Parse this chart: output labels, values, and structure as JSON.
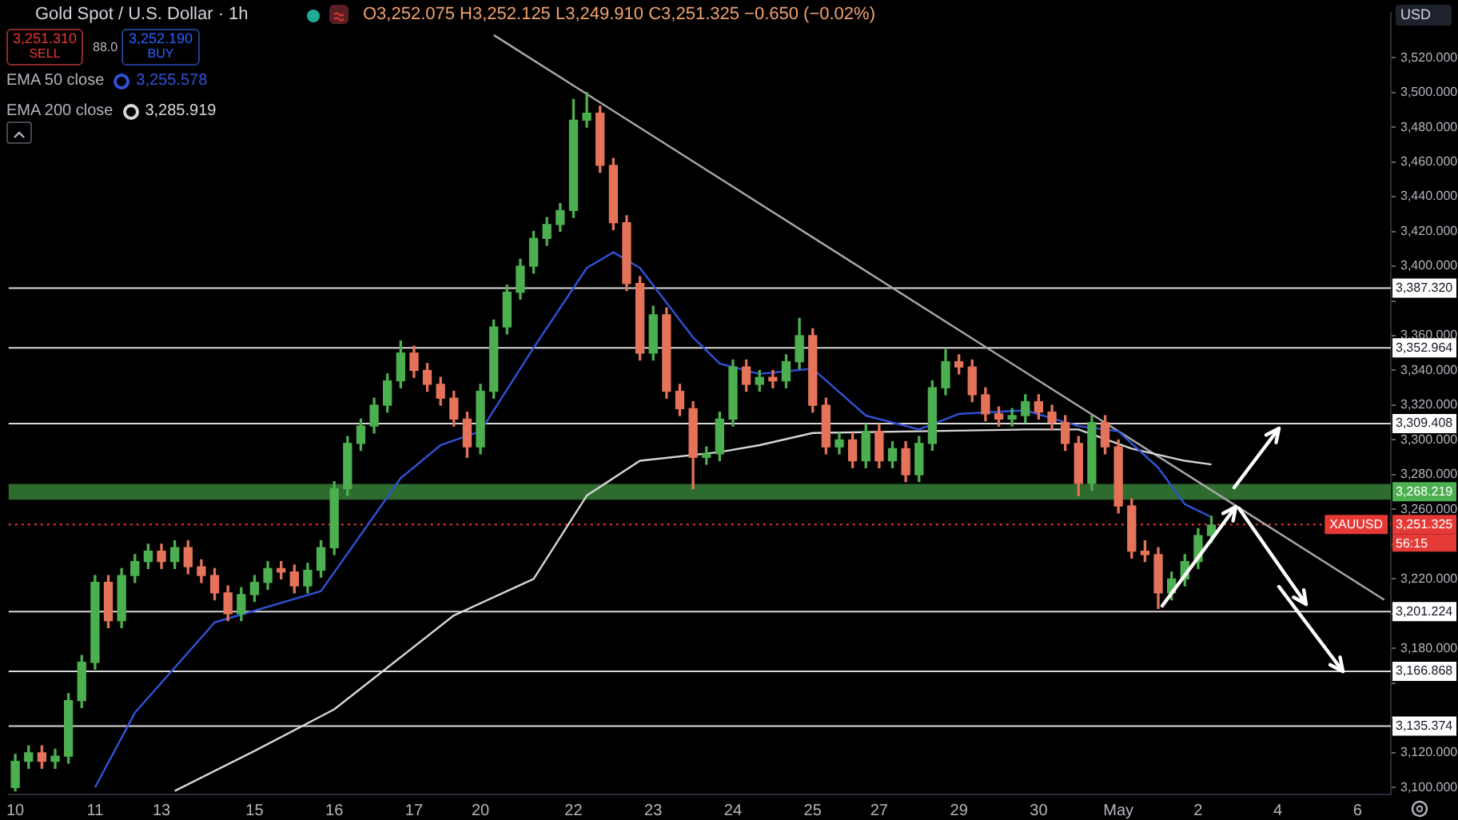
{
  "chart_data": {
    "type": "candlestick",
    "title": "Gold Spot / U.S. Dollar · 1h",
    "categories": [
      "10",
      null,
      null,
      null,
      null,
      null,
      "11",
      null,
      null,
      null,
      null,
      "13",
      null,
      null,
      null,
      null,
      null,
      null,
      "15",
      null,
      null,
      null,
      null,
      null,
      "16",
      null,
      null,
      null,
      null,
      null,
      "17",
      null,
      null,
      null,
      null,
      "20",
      null,
      null,
      null,
      null,
      null,
      null,
      "22",
      null,
      null,
      null,
      null,
      null,
      "23",
      null,
      null,
      null,
      null,
      null,
      "24",
      null,
      null,
      null,
      null,
      null,
      "25",
      null,
      null,
      null,
      null,
      "27",
      null,
      null,
      null,
      null,
      null,
      "29",
      null,
      null,
      null,
      null,
      null,
      "30",
      null,
      null,
      null,
      null,
      null,
      "May",
      null,
      null,
      null,
      null,
      null,
      "2",
      null,
      null,
      null,
      null,
      null,
      "4",
      null,
      null,
      null,
      null,
      null,
      "6",
      null,
      null
    ],
    "ohlc": [
      [
        3100,
        3119,
        3098,
        3115
      ],
      [
        3115,
        3124,
        3111,
        3120
      ],
      [
        3120,
        3124,
        3111,
        3115
      ],
      [
        3115,
        3122,
        3111,
        3118
      ],
      [
        3118,
        3154,
        3114,
        3150
      ],
      [
        3150,
        3176,
        3146,
        3172
      ],
      [
        3172,
        3222,
        3168,
        3218
      ],
      [
        3218,
        3222,
        3192,
        3196
      ],
      [
        3196,
        3226,
        3192,
        3222
      ],
      [
        3222,
        3234,
        3218,
        3230
      ],
      [
        3230,
        3240,
        3226,
        3236
      ],
      [
        3236,
        3240,
        3226,
        3230
      ],
      [
        3230,
        3242,
        3226,
        3238
      ],
      [
        3238,
        3242,
        3223,
        3227
      ],
      [
        3227,
        3231,
        3218,
        3222
      ],
      [
        3222,
        3226,
        3208,
        3212
      ],
      [
        3212,
        3216,
        3196,
        3200
      ],
      [
        3200,
        3215,
        3196,
        3211
      ],
      [
        3211,
        3222,
        3207,
        3218
      ],
      [
        3218,
        3230,
        3214,
        3226
      ],
      [
        3226,
        3230,
        3220,
        3224
      ],
      [
        3224,
        3228,
        3212,
        3216
      ],
      [
        3216,
        3229,
        3212,
        3225
      ],
      [
        3225,
        3242,
        3221,
        3238
      ],
      [
        3238,
        3276,
        3234,
        3272
      ],
      [
        3272,
        3302,
        3268,
        3298
      ],
      [
        3298,
        3312,
        3294,
        3308
      ],
      [
        3308,
        3324,
        3304,
        3320
      ],
      [
        3320,
        3338,
        3316,
        3334
      ],
      [
        3334,
        3357,
        3330,
        3350
      ],
      [
        3350,
        3354,
        3336,
        3340
      ],
      [
        3340,
        3344,
        3328,
        3332
      ],
      [
        3332,
        3336,
        3320,
        3324
      ],
      [
        3324,
        3328,
        3308,
        3312
      ],
      [
        3312,
        3316,
        3290,
        3296
      ],
      [
        3296,
        3332,
        3292,
        3328
      ],
      [
        3328,
        3369,
        3324,
        3365
      ],
      [
        3365,
        3389,
        3361,
        3385
      ],
      [
        3385,
        3404,
        3381,
        3400
      ],
      [
        3400,
        3420,
        3396,
        3416
      ],
      [
        3416,
        3428,
        3412,
        3424
      ],
      [
        3424,
        3436,
        3420,
        3432
      ],
      [
        3432,
        3496,
        3428,
        3484
      ],
      [
        3484,
        3500,
        3480,
        3488
      ],
      [
        3488,
        3492,
        3454,
        3458
      ],
      [
        3458,
        3462,
        3421,
        3425
      ],
      [
        3425,
        3429,
        3386,
        3390
      ],
      [
        3390,
        3394,
        3346,
        3350
      ],
      [
        3350,
        3377,
        3346,
        3372
      ],
      [
        3372,
        3376,
        3324,
        3328
      ],
      [
        3328,
        3332,
        3314,
        3318
      ],
      [
        3318,
        3322,
        3272,
        3290
      ],
      [
        3290,
        3296,
        3286,
        3292
      ],
      [
        3292,
        3316,
        3288,
        3312
      ],
      [
        3312,
        3346,
        3308,
        3342
      ],
      [
        3342,
        3346,
        3328,
        3332
      ],
      [
        3332,
        3340,
        3328,
        3336
      ],
      [
        3336,
        3340,
        3330,
        3334
      ],
      [
        3334,
        3349,
        3330,
        3345
      ],
      [
        3345,
        3370,
        3341,
        3360
      ],
      [
        3360,
        3364,
        3316,
        3320
      ],
      [
        3320,
        3324,
        3292,
        3296
      ],
      [
        3296,
        3304,
        3292,
        3300
      ],
      [
        3300,
        3304,
        3284,
        3288
      ],
      [
        3288,
        3309,
        3284,
        3305
      ],
      [
        3305,
        3309,
        3284,
        3288
      ],
      [
        3288,
        3299,
        3284,
        3295
      ],
      [
        3295,
        3299,
        3276,
        3280
      ],
      [
        3280,
        3302,
        3276,
        3298
      ],
      [
        3298,
        3334,
        3294,
        3330
      ],
      [
        3330,
        3352,
        3326,
        3345
      ],
      [
        3345,
        3349,
        3338,
        3342
      ],
      [
        3342,
        3346,
        3322,
        3326
      ],
      [
        3326,
        3330,
        3311,
        3315
      ],
      [
        3315,
        3319,
        3308,
        3312
      ],
      [
        3312,
        3318,
        3308,
        3314
      ],
      [
        3314,
        3326,
        3310,
        3322
      ],
      [
        3322,
        3326,
        3312,
        3316
      ],
      [
        3316,
        3320,
        3306,
        3310
      ],
      [
        3310,
        3314,
        3294,
        3298
      ],
      [
        3298,
        3302,
        3268,
        3275
      ],
      [
        3275,
        3314,
        3271,
        3310
      ],
      [
        3310,
        3314,
        3292,
        3296
      ],
      [
        3296,
        3300,
        3258,
        3262
      ],
      [
        3262,
        3266,
        3232,
        3236
      ],
      [
        3236,
        3242,
        3230,
        3234
      ],
      [
        3234,
        3238,
        3203,
        3212
      ],
      [
        3212,
        3224,
        3208,
        3220
      ],
      [
        3220,
        3234,
        3216,
        3230
      ],
      [
        3230,
        3249,
        3226,
        3245
      ],
      [
        3245,
        3256,
        3241,
        3251
      ],
      null,
      null,
      null,
      null,
      null,
      null,
      null,
      null,
      null,
      null,
      null,
      null,
      null
    ],
    "colors": [
      "#4caf50",
      "#4caf50",
      "#e5735a",
      "#4caf50",
      "#4caf50",
      "#4caf50",
      "#4caf50",
      "#e5735a",
      "#4caf50",
      "#4caf50",
      "#4caf50",
      "#e5735a",
      "#4caf50",
      "#e5735a",
      "#e5735a",
      "#e5735a",
      "#e5735a",
      "#4caf50",
      "#4caf50",
      "#4caf50",
      "#e5735a",
      "#e5735a",
      "#4caf50",
      "#4caf50",
      "#4caf50",
      "#4caf50",
      "#4caf50",
      "#4caf50",
      "#4caf50",
      "#4caf50",
      "#e5735a",
      "#e5735a",
      "#e5735a",
      "#e5735a",
      "#e5735a",
      "#4caf50",
      "#4caf50",
      "#4caf50",
      "#4caf50",
      "#4caf50",
      "#4caf50",
      "#4caf50",
      "#4caf50",
      "#4caf50",
      "#e5735a",
      "#e5735a",
      "#e5735a",
      "#e5735a",
      "#4caf50",
      "#e5735a",
      "#e5735a",
      "#e5735a",
      "#4caf50",
      "#4caf50",
      "#4caf50",
      "#e5735a",
      "#4caf50",
      "#e5735a",
      "#4caf50",
      "#4caf50",
      "#e5735a",
      "#e5735a",
      "#4caf50",
      "#e5735a",
      "#4caf50",
      "#e5735a",
      "#4caf50",
      "#e5735a",
      "#4caf50",
      "#4caf50",
      "#4caf50",
      "#e5735a",
      "#e5735a",
      "#e5735a",
      "#e5735a",
      "#4caf50",
      "#4caf50",
      "#e5735a",
      "#e5735a",
      "#e5735a",
      "#e5735a",
      "#4caf50",
      "#e5735a",
      "#e5735a",
      "#e5735a",
      "#e5735a",
      "#e5735a",
      "#4caf50",
      "#4caf50",
      "#4caf50",
      "#4caf50",
      null,
      null,
      null,
      null,
      null,
      null,
      null,
      null,
      null,
      null,
      null,
      null,
      null
    ],
    "series": [
      {
        "name": "EMA 50 close",
        "type": "line",
        "color": "#3152d8",
        "values": [
          null,
          null,
          null,
          null,
          null,
          null,
          3100,
          null,
          null,
          3143,
          null,
          null,
          null,
          null,
          null,
          3195,
          null,
          null,
          null,
          null,
          null,
          null,
          null,
          3213,
          null,
          null,
          null,
          null,
          null,
          3278,
          null,
          null,
          3297,
          null,
          null,
          3305,
          null,
          null,
          null,
          3353,
          null,
          null,
          null,
          3399,
          null,
          3408,
          null,
          3399,
          null,
          null,
          null,
          3359,
          null,
          3344,
          null,
          null,
          3338,
          null,
          null,
          null,
          3341,
          null,
          null,
          null,
          3314,
          null,
          null,
          null,
          3306,
          null,
          null,
          3315,
          null,
          null,
          null,
          null,
          3317,
          null,
          null,
          null,
          3308,
          null,
          null,
          3305,
          null,
          null,
          3284,
          null,
          3263,
          null,
          3255.578,
          null,
          null,
          null,
          null,
          null,
          null,
          null,
          null,
          null,
          null,
          null,
          null,
          null
        ]
      },
      {
        "name": "EMA 200 close",
        "type": "line",
        "color": "#d6d6d6",
        "values": [
          null,
          null,
          null,
          null,
          null,
          null,
          null,
          null,
          null,
          null,
          null,
          null,
          3098,
          null,
          null,
          null,
          null,
          null,
          3121,
          null,
          null,
          null,
          null,
          null,
          3145,
          null,
          null,
          null,
          null,
          3175,
          null,
          null,
          null,
          3199,
          null,
          null,
          null,
          null,
          null,
          3220,
          null,
          null,
          null,
          3268,
          null,
          null,
          null,
          3288,
          null,
          null,
          null,
          null,
          null,
          3293,
          null,
          null,
          3297,
          null,
          null,
          null,
          3304,
          null,
          null,
          null,
          null,
          null,
          null,
          null,
          3305,
          null,
          null,
          null,
          null,
          null,
          null,
          null,
          3306,
          null,
          null,
          null,
          3306,
          null,
          null,
          null,
          3295,
          null,
          null,
          null,
          3288,
          null,
          3285.919,
          null,
          null,
          null,
          null,
          null,
          null,
          null,
          null,
          null,
          null,
          null,
          null,
          null
        ]
      },
      {
        "type": "line",
        "color": "#a8a8a8",
        "values": [
          null,
          null,
          null,
          null,
          null,
          null,
          null,
          null,
          null,
          null,
          null,
          null,
          null,
          null,
          null,
          null,
          null,
          null,
          null,
          null,
          null,
          null,
          null,
          null,
          null,
          null,
          null,
          null,
          null,
          null,
          null,
          null,
          null,
          null,
          null,
          null,
          3533,
          null,
          null,
          null,
          null,
          null,
          null,
          null,
          null,
          null,
          null,
          null,
          null,
          null,
          null,
          null,
          null,
          null,
          null,
          null,
          null,
          null,
          null,
          null,
          null,
          null,
          null,
          null,
          null,
          null,
          null,
          null,
          null,
          null,
          null,
          null,
          null,
          null,
          null,
          null,
          null,
          null,
          null,
          null,
          null,
          null,
          null,
          null,
          null,
          null,
          null,
          null,
          null,
          null,
          null,
          null,
          null,
          null,
          null,
          null,
          null,
          null,
          null,
          null,
          null,
          null,
          null,
          3208
        ]
      }
    ],
    "ylim": [
      3096,
      3546
    ],
    "yticks": [
      {
        "value": 3100,
        "label": "3,100.000"
      },
      {
        "value": 3120,
        "label": "3,120.000"
      },
      {
        "value": 3140,
        "label": null
      },
      {
        "value": 3160,
        "label": null
      },
      {
        "value": 3180,
        "label": "3,180.000"
      },
      {
        "value": 3200,
        "label": null
      },
      {
        "value": 3220,
        "label": "3,220.000"
      },
      {
        "value": 3240,
        "label": null
      },
      {
        "value": 3260,
        "label": "3,260.000"
      },
      {
        "value": 3280,
        "label": "3,280.000"
      },
      {
        "value": 3300,
        "label": "3,300.000"
      },
      {
        "value": 3320,
        "label": "3,320.000"
      },
      {
        "value": 3340,
        "label": "3,340.000"
      },
      {
        "value": 3360,
        "label": "3,360.000"
      },
      {
        "value": 3380,
        "label": null
      },
      {
        "value": 3400,
        "label": "3,400.000"
      },
      {
        "value": 3420,
        "label": "3,420.000"
      },
      {
        "value": 3440,
        "label": "3,440.000"
      },
      {
        "value": 3460,
        "label": "3,460.000"
      },
      {
        "value": 3480,
        "label": "3,480.000"
      },
      {
        "value": 3500,
        "label": "3,500.000"
      },
      {
        "value": 3520,
        "label": "3,520.000"
      }
    ],
    "ref_lines": [
      {
        "axis": "y",
        "value": 3387.32,
        "label": "3,387.320",
        "color": "#d9d9d9"
      },
      {
        "axis": "y",
        "value": 3352.964,
        "label": "3,352.964",
        "color": "#d9d9d9"
      },
      {
        "axis": "y",
        "value": 3309.408,
        "label": "3,309.408",
        "color": "#d9d9d9"
      },
      {
        "axis": "y",
        "value": 3201.224,
        "label": "3,201.224",
        "color": "#d9d9d9"
      },
      {
        "axis": "y",
        "value": 3166.868,
        "label": "3,166.868",
        "color": "#d9d9d9"
      },
      {
        "axis": "y",
        "value": 3135.374,
        "label": "3,135.374",
        "color": "#d9d9d9"
      },
      {
        "axis": "y",
        "value": 3251.325,
        "label": "3,251.325",
        "color": "#e53935",
        "line_style": "dotted"
      }
    ],
    "bands": [
      {
        "axis": "y",
        "from": 3265.6,
        "to": 3274.7,
        "label": "3,268.219",
        "color": "#2e6b2f"
      }
    ],
    "annotations": [
      "O3,252.075 H3,252.125 L3,249.910 C3,251.325 −0.650 (−0.02%)",
      "3,251.310",
      "SELL",
      "88.0",
      "3,252.190",
      "BUY",
      "USD",
      "3,255.578",
      "3,285.919",
      {
        "text": "XAUUSD",
        "y": 3251.325
      },
      "56:15"
    ],
    "grid": false,
    "legend": "top left",
    "marker": "none",
    "line_style": "solid"
  }
}
